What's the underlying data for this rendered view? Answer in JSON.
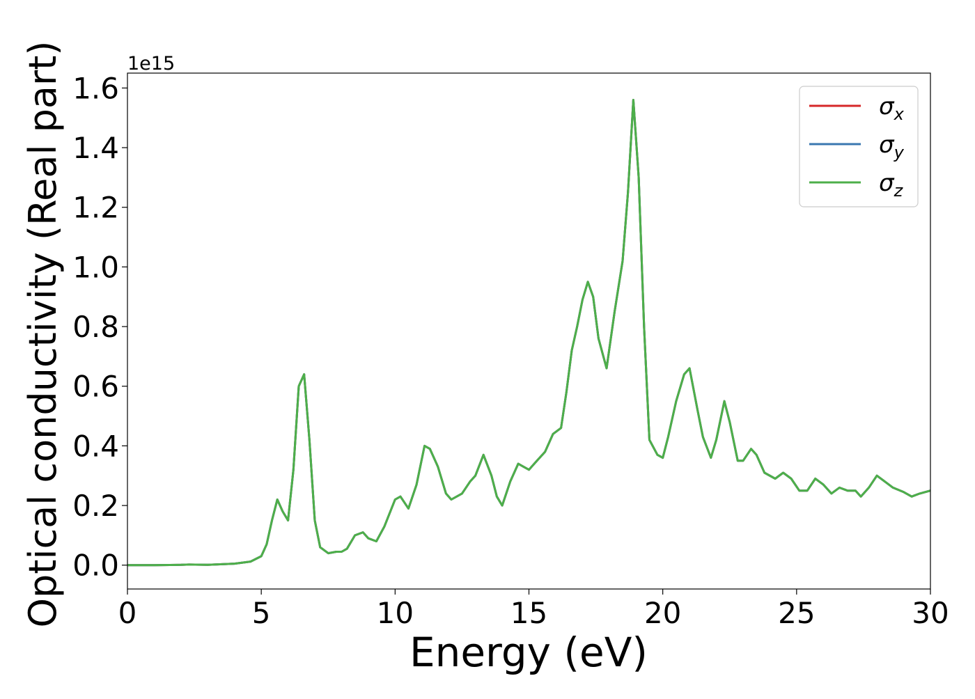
{
  "chart_data": {
    "type": "line",
    "xlabel": "Energy (eV)",
    "ylabel": "Optical conductivity (Real part)",
    "y_offset_label": "1e15",
    "xlim": [
      0,
      30
    ],
    "ylim": [
      -0.08,
      1.65
    ],
    "x_ticks": [
      0,
      5,
      10,
      15,
      20,
      25,
      30
    ],
    "x_tick_labels": [
      "0",
      "5",
      "10",
      "15",
      "20",
      "25",
      "30"
    ],
    "y_ticks": [
      0.0,
      0.2,
      0.4,
      0.6,
      0.8,
      1.0,
      1.2,
      1.4,
      1.6
    ],
    "y_tick_labels": [
      "0.0",
      "0.2",
      "0.4",
      "0.6",
      "0.8",
      "1.0",
      "1.2",
      "1.4",
      "1.6"
    ],
    "grid": false,
    "legend_position": "top-right",
    "x": [
      0,
      1,
      2,
      2.3,
      3,
      4,
      4.6,
      5.0,
      5.2,
      5.4,
      5.6,
      5.8,
      6.0,
      6.2,
      6.4,
      6.6,
      6.8,
      7.0,
      7.2,
      7.5,
      7.8,
      8.0,
      8.2,
      8.5,
      8.8,
      9.0,
      9.3,
      9.6,
      10.0,
      10.2,
      10.5,
      10.8,
      11.1,
      11.3,
      11.6,
      11.9,
      12.1,
      12.5,
      12.8,
      13.0,
      13.3,
      13.6,
      13.8,
      14.0,
      14.3,
      14.6,
      14.8,
      15.0,
      15.3,
      15.6,
      15.9,
      16.2,
      16.4,
      16.6,
      16.8,
      17.0,
      17.2,
      17.4,
      17.6,
      17.9,
      18.2,
      18.5,
      18.7,
      18.9,
      19.1,
      19.3,
      19.5,
      19.8,
      20.0,
      20.2,
      20.5,
      20.8,
      21.0,
      21.3,
      21.5,
      21.8,
      22.0,
      22.3,
      22.5,
      22.8,
      23.0,
      23.3,
      23.5,
      23.8,
      24.2,
      24.5,
      24.8,
      25.1,
      25.4,
      25.7,
      26.0,
      26.3,
      26.6,
      26.9,
      27.2,
      27.4,
      27.7,
      28.0,
      28.3,
      28.6,
      29.0,
      29.3,
      29.6,
      30.0
    ],
    "series": [
      {
        "name": "σx",
        "color": "#d62728",
        "values": [
          0.0,
          0.0,
          0.001,
          0.002,
          0.001,
          0.005,
          0.012,
          0.03,
          0.07,
          0.15,
          0.22,
          0.18,
          0.15,
          0.32,
          0.6,
          0.64,
          0.42,
          0.15,
          0.06,
          0.04,
          0.045,
          0.045,
          0.055,
          0.1,
          0.11,
          0.09,
          0.08,
          0.13,
          0.22,
          0.23,
          0.19,
          0.27,
          0.4,
          0.39,
          0.33,
          0.24,
          0.22,
          0.24,
          0.28,
          0.3,
          0.37,
          0.3,
          0.23,
          0.2,
          0.28,
          0.34,
          0.33,
          0.32,
          0.35,
          0.38,
          0.44,
          0.46,
          0.58,
          0.72,
          0.8,
          0.89,
          0.95,
          0.9,
          0.76,
          0.66,
          0.85,
          1.02,
          1.25,
          1.56,
          1.3,
          0.8,
          0.42,
          0.37,
          0.36,
          0.43,
          0.55,
          0.64,
          0.66,
          0.52,
          0.43,
          0.36,
          0.42,
          0.55,
          0.48,
          0.35,
          0.35,
          0.39,
          0.37,
          0.31,
          0.29,
          0.31,
          0.29,
          0.25,
          0.25,
          0.29,
          0.27,
          0.24,
          0.26,
          0.25,
          0.25,
          0.23,
          0.26,
          0.3,
          0.28,
          0.26,
          0.245,
          0.23,
          0.24,
          0.25
        ]
      },
      {
        "name": "σy",
        "color": "#3a77b0",
        "values": [
          0.0,
          0.0,
          0.001,
          0.002,
          0.001,
          0.005,
          0.012,
          0.03,
          0.07,
          0.15,
          0.22,
          0.18,
          0.15,
          0.32,
          0.6,
          0.64,
          0.42,
          0.15,
          0.06,
          0.04,
          0.045,
          0.045,
          0.055,
          0.1,
          0.11,
          0.09,
          0.08,
          0.13,
          0.22,
          0.23,
          0.19,
          0.27,
          0.4,
          0.39,
          0.33,
          0.24,
          0.22,
          0.24,
          0.28,
          0.3,
          0.37,
          0.3,
          0.23,
          0.2,
          0.28,
          0.34,
          0.33,
          0.32,
          0.35,
          0.38,
          0.44,
          0.46,
          0.58,
          0.72,
          0.8,
          0.89,
          0.95,
          0.9,
          0.76,
          0.66,
          0.85,
          1.02,
          1.25,
          1.56,
          1.3,
          0.8,
          0.42,
          0.37,
          0.36,
          0.43,
          0.55,
          0.64,
          0.66,
          0.52,
          0.43,
          0.36,
          0.42,
          0.55,
          0.48,
          0.35,
          0.35,
          0.39,
          0.37,
          0.31,
          0.29,
          0.31,
          0.29,
          0.25,
          0.25,
          0.29,
          0.27,
          0.24,
          0.26,
          0.25,
          0.25,
          0.23,
          0.26,
          0.3,
          0.28,
          0.26,
          0.245,
          0.23,
          0.24,
          0.25
        ]
      },
      {
        "name": "σz",
        "color": "#4daf4a",
        "values": [
          0.0,
          0.0,
          0.001,
          0.002,
          0.001,
          0.005,
          0.012,
          0.03,
          0.07,
          0.15,
          0.22,
          0.18,
          0.15,
          0.32,
          0.6,
          0.64,
          0.42,
          0.15,
          0.06,
          0.04,
          0.045,
          0.045,
          0.055,
          0.1,
          0.11,
          0.09,
          0.08,
          0.13,
          0.22,
          0.23,
          0.19,
          0.27,
          0.4,
          0.39,
          0.33,
          0.24,
          0.22,
          0.24,
          0.28,
          0.3,
          0.37,
          0.3,
          0.23,
          0.2,
          0.28,
          0.34,
          0.33,
          0.32,
          0.35,
          0.38,
          0.44,
          0.46,
          0.58,
          0.72,
          0.8,
          0.89,
          0.95,
          0.9,
          0.76,
          0.66,
          0.85,
          1.02,
          1.25,
          1.56,
          1.3,
          0.8,
          0.42,
          0.37,
          0.36,
          0.43,
          0.55,
          0.64,
          0.66,
          0.52,
          0.43,
          0.36,
          0.42,
          0.55,
          0.48,
          0.35,
          0.35,
          0.39,
          0.37,
          0.31,
          0.29,
          0.31,
          0.29,
          0.25,
          0.25,
          0.29,
          0.27,
          0.24,
          0.26,
          0.25,
          0.25,
          0.23,
          0.26,
          0.3,
          0.28,
          0.26,
          0.245,
          0.23,
          0.24,
          0.25
        ]
      }
    ],
    "legend": [
      {
        "symbol": "σ",
        "sub": "x",
        "color": "#d62728"
      },
      {
        "symbol": "σ",
        "sub": "y",
        "color": "#3a77b0"
      },
      {
        "symbol": "σ",
        "sub": "z",
        "color": "#4daf4a"
      }
    ]
  }
}
